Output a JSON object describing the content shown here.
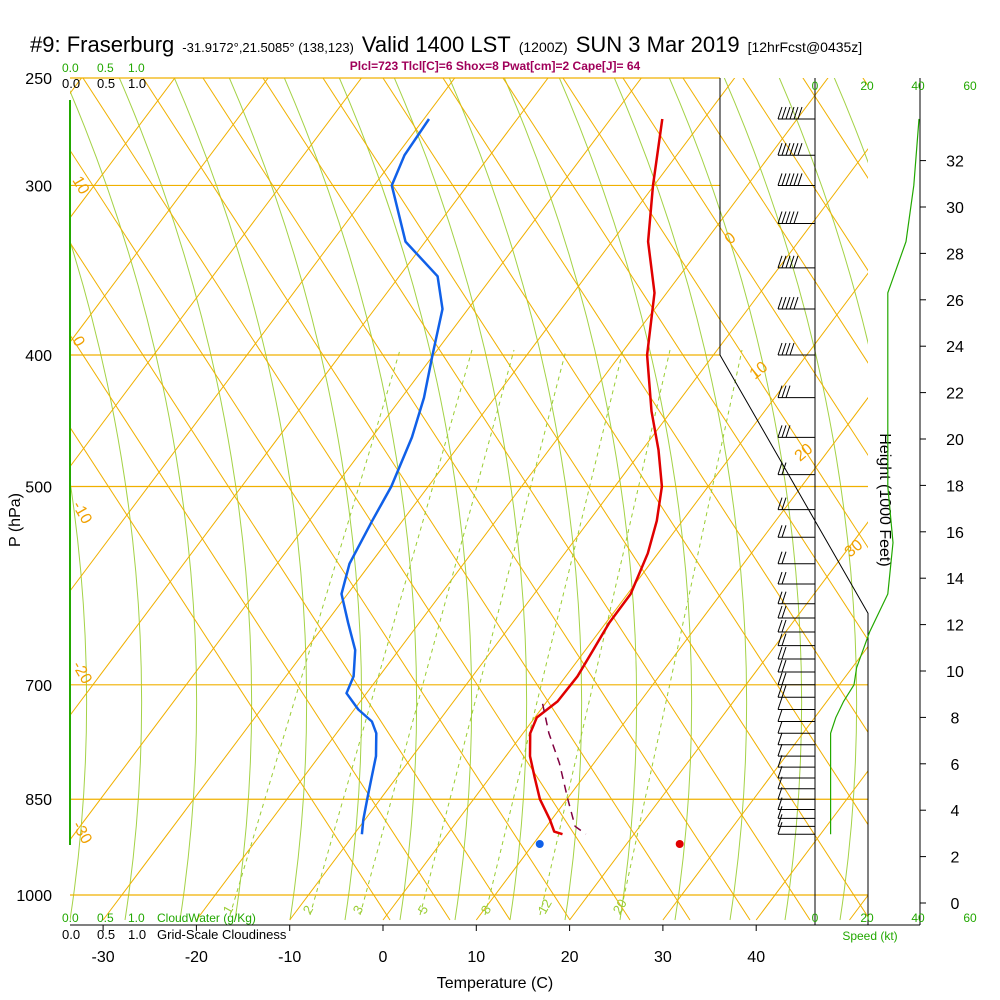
{
  "header": {
    "station": "#9: Fraserburg",
    "coords": "-31.9172°,21.5085° (138,123)",
    "valid": "Valid 1400 LST",
    "zulu": "(1200Z)",
    "date": "SUN 3 Mar 2019",
    "forecast": "[12hrFcst@0435z]",
    "params": "Plcl=723 Tlcl[C]=6 Shox=8 Pwat[cm]=2 Cape[J]= 64"
  },
  "colors": {
    "temperature": "#e00000",
    "dewpoint": "#1060e8",
    "parcel": "#800040",
    "isobar_isotherm": "#f0b000",
    "dry_adiabat": "#9acd32",
    "mixing_ratio": "#9acd32",
    "cloud_profile": "#22a800"
  },
  "chart_data": {
    "type": "line",
    "title": "#9: Fraserburg",
    "xlabel": "Temperature (C)",
    "ylabel": "P (hPa)",
    "right_ylabel": "Height (1000 Feet)",
    "x_ticks": [
      -30,
      -20,
      -10,
      0,
      10,
      20,
      30,
      40
    ],
    "pressure_ticks": [
      250,
      300,
      400,
      500,
      700,
      850,
      1000
    ],
    "height_ticks": [
      0,
      2,
      4,
      6,
      8,
      10,
      12,
      14,
      16,
      18,
      20,
      22,
      24,
      26,
      28,
      30,
      32
    ],
    "wind_speed_ticks": [
      0,
      20,
      40,
      60
    ],
    "wind_speed_label": "Speed (kt)",
    "cloud_ticks_top": [
      "0.0",
      "0.5",
      "1.0"
    ],
    "cloud_labels_top": [
      "0.0",
      "0.5",
      "1.0"
    ],
    "cloud_ticks_bottom": [
      "0.0",
      "0.5",
      "1.0"
    ],
    "cloud_labels_bottom": [
      "0.0",
      "0.5",
      "1.0"
    ],
    "cloud_water_label": "CloudWater (g/Kg)",
    "cloudiness_label": "Grid-Scale Cloudiness",
    "isotherm_labels": [
      "30",
      "20",
      "10",
      "0",
      "-10",
      "-20",
      "-30",
      "0",
      "10",
      "20",
      "30"
    ],
    "mixing_ratio_labels": [
      "1",
      "2",
      "3",
      "5",
      "8",
      "12",
      "20"
    ],
    "series": [
      {
        "name": "Temperature",
        "points": [
          [
            -5,
            268
          ],
          [
            -3,
            300
          ],
          [
            -1,
            330
          ],
          [
            2,
            360
          ],
          [
            4,
            400
          ],
          [
            7,
            440
          ],
          [
            9.5,
            470
          ],
          [
            11.5,
            500
          ],
          [
            12.5,
            530
          ],
          [
            13,
            560
          ],
          [
            13,
            600
          ],
          [
            12,
            630
          ],
          [
            11.5,
            660
          ],
          [
            11,
            690
          ],
          [
            10,
            720
          ],
          [
            8.5,
            740
          ],
          [
            8.5,
            760
          ],
          [
            9.5,
            790
          ],
          [
            11,
            820
          ],
          [
            12.5,
            850
          ],
          [
            14.5,
            880
          ],
          [
            15.5,
            898
          ],
          [
            16.5,
            902
          ]
        ]
      },
      {
        "name": "Dewpoint",
        "points": [
          [
            -30,
            268
          ],
          [
            -31,
            285
          ],
          [
            -31,
            300
          ],
          [
            -27,
            330
          ],
          [
            -22,
            350
          ],
          [
            -20,
            370
          ],
          [
            -19,
            400
          ],
          [
            -18,
            430
          ],
          [
            -17.5,
            460
          ],
          [
            -17.5,
            500
          ],
          [
            -18,
            530
          ],
          [
            -18.5,
            570
          ],
          [
            -18,
            600
          ],
          [
            -16,
            630
          ],
          [
            -14,
            660
          ],
          [
            -13,
            690
          ],
          [
            -13,
            710
          ],
          [
            -11,
            730
          ],
          [
            -9,
            745
          ],
          [
            -8,
            760
          ],
          [
            -7,
            790
          ],
          [
            -6.5,
            820
          ],
          [
            -6,
            850
          ],
          [
            -5.5,
            880
          ],
          [
            -5,
            902
          ]
        ]
      },
      {
        "name": "Parcel",
        "points": [
          [
            8.5,
            723
          ],
          [
            10.5,
            760
          ],
          [
            13,
            800
          ],
          [
            15.5,
            850
          ],
          [
            17.5,
            890
          ],
          [
            19,
            902
          ]
        ]
      }
    ],
    "surface_temperature_c": 31.8,
    "surface_dewpoint_c": 16.8,
    "wind_barbs_kt": [
      {
        "p": 268,
        "dir": 290,
        "spd": 60
      },
      {
        "p": 285,
        "dir": 290,
        "spd": 55
      },
      {
        "p": 300,
        "dir": 290,
        "spd": 55
      },
      {
        "p": 320,
        "dir": 285,
        "spd": 50
      },
      {
        "p": 345,
        "dir": 285,
        "spd": 45
      },
      {
        "p": 370,
        "dir": 285,
        "spd": 45
      },
      {
        "p": 400,
        "dir": 285,
        "spd": 35
      },
      {
        "p": 430,
        "dir": 285,
        "spd": 30
      },
      {
        "p": 460,
        "dir": 285,
        "spd": 25
      },
      {
        "p": 490,
        "dir": 280,
        "spd": 20
      },
      {
        "p": 520,
        "dir": 280,
        "spd": 15
      },
      {
        "p": 545,
        "dir": 280,
        "spd": 15
      },
      {
        "p": 570,
        "dir": 280,
        "spd": 15
      },
      {
        "p": 590,
        "dir": 280,
        "spd": 15
      },
      {
        "p": 610,
        "dir": 280,
        "spd": 15
      },
      {
        "p": 625,
        "dir": 280,
        "spd": 15
      },
      {
        "p": 640,
        "dir": 280,
        "spd": 15
      },
      {
        "p": 655,
        "dir": 280,
        "spd": 15
      },
      {
        "p": 670,
        "dir": 280,
        "spd": 15
      },
      {
        "p": 685,
        "dir": 280,
        "spd": 15
      },
      {
        "p": 700,
        "dir": 280,
        "spd": 15
      },
      {
        "p": 715,
        "dir": 280,
        "spd": 15
      },
      {
        "p": 730,
        "dir": 270,
        "spd": 10
      },
      {
        "p": 745,
        "dir": 270,
        "spd": 10
      },
      {
        "p": 760,
        "dir": 270,
        "spd": 10
      },
      {
        "p": 775,
        "dir": 270,
        "spd": 10
      },
      {
        "p": 790,
        "dir": 270,
        "spd": 10
      },
      {
        "p": 805,
        "dir": 270,
        "spd": 10
      },
      {
        "p": 820,
        "dir": 270,
        "spd": 10
      },
      {
        "p": 835,
        "dir": 270,
        "spd": 10
      },
      {
        "p": 850,
        "dir": 270,
        "spd": 10
      },
      {
        "p": 865,
        "dir": 270,
        "spd": 10
      },
      {
        "p": 878,
        "dir": 270,
        "spd": 10
      },
      {
        "p": 890,
        "dir": 270,
        "spd": 10
      },
      {
        "p": 902,
        "dir": 270,
        "spd": 10
      }
    ],
    "wind_speed_profile_kt": [
      [
        40,
        268
      ],
      [
        38,
        300
      ],
      [
        35,
        330
      ],
      [
        28,
        360
      ],
      [
        28,
        400
      ],
      [
        28,
        450
      ],
      [
        28,
        500
      ],
      [
        30,
        550
      ],
      [
        28,
        600
      ],
      [
        21,
        640
      ],
      [
        16,
        680
      ],
      [
        15,
        700
      ],
      [
        11,
        720
      ],
      [
        8,
        740
      ],
      [
        6,
        760
      ],
      [
        6,
        800
      ],
      [
        6,
        850
      ],
      [
        6,
        902
      ]
    ]
  }
}
